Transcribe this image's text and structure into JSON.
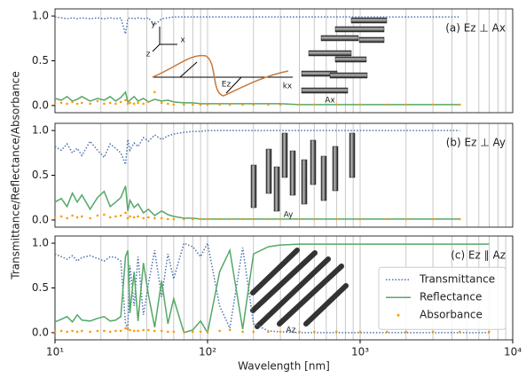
{
  "chart_data": [
    {
      "type": "line",
      "title": "(a) Ez ⊥ Ax",
      "x": [
        10,
        11,
        12,
        13,
        14,
        15,
        17,
        19,
        21,
        23,
        25,
        27,
        29,
        30,
        31,
        33,
        35,
        38,
        41,
        45,
        50,
        55,
        60,
        70,
        80,
        90,
        100,
        120,
        140,
        170,
        200,
        250,
        300,
        400,
        500,
        700,
        1000,
        1500,
        2000,
        3000,
        4500,
        7000
      ],
      "xlim": [
        10,
        10000
      ],
      "log_x": true,
      "xgrid": [
        20,
        30,
        40,
        50,
        60,
        70,
        80,
        90,
        100,
        200,
        300,
        400,
        500,
        600,
        700,
        800,
        900,
        1000,
        2000,
        3000,
        4000,
        5000,
        6000,
        7000,
        8000,
        9000
      ],
      "ylim": [
        -0.08,
        1.08
      ],
      "yticks": [
        {
          "value": 0,
          "label": "0.0"
        },
        {
          "value": 0.5,
          "label": "0.5"
        },
        {
          "value": 1,
          "label": "1.0"
        }
      ],
      "series": [
        {
          "style": "dotted",
          "color": "#4c72b0",
          "values": [
            0.99,
            0.98,
            0.97,
            0.98,
            0.97,
            0.98,
            0.97,
            0.98,
            0.97,
            0.98,
            0.97,
            0.98,
            0.8,
            0.97,
            0.98,
            0.97,
            0.98,
            0.97,
            0.98,
            0.9,
            0.97,
            0.98,
            0.99,
            0.99,
            0.99,
            0.99,
            0.99,
            0.99,
            0.99,
            0.99,
            0.99,
            0.99,
            0.99,
            0.99,
            0.99,
            0.99,
            0.99,
            0.99,
            0.99,
            0.99,
            0.99,
            null
          ]
        },
        {
          "style": "solid",
          "color": "#55a868",
          "values": [
            0.08,
            0.06,
            0.1,
            0.05,
            0.07,
            0.1,
            0.05,
            0.08,
            0.06,
            0.1,
            0.05,
            0.09,
            0.15,
            0.04,
            0.06,
            0.1,
            0.05,
            0.08,
            0.04,
            0.07,
            0.05,
            0.06,
            0.04,
            0.03,
            0.03,
            0.02,
            0.02,
            0.02,
            0.02,
            0.02,
            0.02,
            0.02,
            0.02,
            0.01,
            0.01,
            0.01,
            0.01,
            0.01,
            0.01,
            0.01,
            0.01,
            null
          ]
        },
        {
          "style": "points",
          "color": "#ff9900",
          "values": [
            0.02,
            0.03,
            0.02,
            0.04,
            0.02,
            0.03,
            0.02,
            0.05,
            0.02,
            0.03,
            0.02,
            0.04,
            0.06,
            0.02,
            0.03,
            0.02,
            0.03,
            0.02,
            0.04,
            0.15,
            0.03,
            0.02,
            0.01,
            0.01,
            0.01,
            0.01,
            0.01,
            0.01,
            0.01,
            0.01,
            0.01,
            0.01,
            0.01,
            0.01,
            0.01,
            0.01,
            0.01,
            0.01,
            0.01,
            0.01,
            0.01,
            null
          ]
        }
      ],
      "inset_labels": [
        "y",
        "x",
        "z",
        "Ez",
        "kx",
        "Ax"
      ]
    },
    {
      "type": "line",
      "title": "(b) Ez ⊥ Ay",
      "ylabel": "Transmittance/Reflectance/Absorbance",
      "x": [
        10,
        11,
        12,
        13,
        14,
        15,
        17,
        19,
        21,
        23,
        25,
        27,
        29,
        30,
        31,
        33,
        35,
        38,
        41,
        45,
        50,
        55,
        60,
        70,
        80,
        90,
        100,
        120,
        140,
        170,
        200,
        250,
        300,
        400,
        500,
        700,
        1000,
        1500,
        2000,
        3000,
        4500,
        7000
      ],
      "xlim": [
        10,
        10000
      ],
      "log_x": true,
      "xgrid": [
        20,
        30,
        40,
        50,
        60,
        70,
        80,
        90,
        100,
        200,
        300,
        400,
        500,
        600,
        700,
        800,
        900,
        1000,
        2000,
        3000,
        4000,
        5000,
        6000,
        7000,
        8000,
        9000
      ],
      "ylim": [
        -0.08,
        1.08
      ],
      "yticks": [
        {
          "value": 0,
          "label": "0.0"
        },
        {
          "value": 0.5,
          "label": "0.5"
        },
        {
          "value": 1,
          "label": "1.0"
        }
      ],
      "series": [
        {
          "style": "dotted",
          "color": "#4c72b0",
          "values": [
            0.82,
            0.78,
            0.85,
            0.75,
            0.8,
            0.72,
            0.88,
            0.78,
            0.7,
            0.85,
            0.8,
            0.75,
            0.62,
            0.9,
            0.78,
            0.86,
            0.82,
            0.92,
            0.88,
            0.95,
            0.9,
            0.94,
            0.96,
            0.98,
            0.99,
            0.99,
            1.0,
            1.0,
            1.0,
            1.0,
            1.0,
            1.0,
            1.0,
            1.0,
            1.0,
            1.0,
            1.0,
            1.0,
            1.0,
            1.0,
            1.0,
            null
          ]
        },
        {
          "style": "solid",
          "color": "#55a868",
          "values": [
            0.2,
            0.24,
            0.15,
            0.3,
            0.2,
            0.28,
            0.12,
            0.25,
            0.32,
            0.15,
            0.2,
            0.25,
            0.38,
            0.1,
            0.22,
            0.14,
            0.18,
            0.08,
            0.12,
            0.05,
            0.1,
            0.06,
            0.04,
            0.02,
            0.02,
            0.01,
            0.01,
            0.01,
            0.01,
            0.01,
            0.01,
            0.01,
            0.01,
            0.01,
            0.01,
            0.01,
            0.01,
            0.01,
            0.01,
            0.01,
            0.01,
            null
          ]
        },
        {
          "style": "points",
          "color": "#ff9900",
          "values": [
            0.03,
            0.04,
            0.02,
            0.05,
            0.03,
            0.04,
            0.02,
            0.05,
            0.06,
            0.03,
            0.04,
            0.05,
            0.08,
            0.02,
            0.04,
            0.03,
            0.04,
            0.02,
            0.03,
            0.02,
            0.02,
            0.01,
            0.01,
            0.01,
            0.01,
            0.01,
            0.01,
            0.01,
            0.01,
            0.01,
            0.01,
            0.01,
            0.01,
            0.01,
            0.01,
            0.01,
            0.01,
            0.01,
            0.01,
            0.01,
            0.01,
            null
          ]
        }
      ],
      "inset_labels": [
        "Ay"
      ]
    },
    {
      "type": "line",
      "title": "(c) Ez ∥ Az",
      "xlabel": "Wavelength [nm]",
      "legend": "center right",
      "x": [
        10,
        11,
        12,
        13,
        14,
        15,
        17,
        19,
        21,
        23,
        25,
        27,
        29,
        30,
        31,
        33,
        35,
        38,
        41,
        45,
        50,
        55,
        60,
        70,
        80,
        90,
        100,
        120,
        140,
        170,
        200,
        250,
        300,
        400,
        500,
        700,
        1000,
        1500,
        2000,
        3000,
        4500,
        7000
      ],
      "xlim": [
        10,
        10000
      ],
      "log_x": true,
      "xticks": [
        {
          "value": 10,
          "label": "10¹"
        },
        {
          "value": 100,
          "label": "10²"
        },
        {
          "value": 1000,
          "label": "10³"
        },
        {
          "value": 10000,
          "label": "10⁴"
        }
      ],
      "xgrid": [
        20,
        30,
        40,
        50,
        60,
        70,
        80,
        90,
        100,
        200,
        300,
        400,
        500,
        600,
        700,
        800,
        900,
        1000,
        2000,
        3000,
        4000,
        5000,
        6000,
        7000,
        8000,
        9000
      ],
      "ylim": [
        -0.08,
        1.08
      ],
      "yticks": [
        {
          "value": 0,
          "label": "0.0"
        },
        {
          "value": 0.5,
          "label": "0.5"
        },
        {
          "value": 1,
          "label": "1.0"
        }
      ],
      "series": [
        {
          "name": "Transmittance",
          "style": "dotted",
          "color": "#4c72b0",
          "values": [
            0.88,
            0.85,
            0.82,
            0.86,
            0.8,
            0.84,
            0.86,
            0.83,
            0.8,
            0.85,
            0.84,
            0.8,
            0.1,
            0.05,
            0.75,
            0.3,
            0.85,
            0.2,
            0.55,
            0.92,
            0.4,
            0.88,
            0.6,
            1.0,
            0.96,
            0.85,
            1.0,
            0.3,
            0.05,
            0.95,
            0.1,
            0.02,
            0.01,
            0.0,
            0.0,
            0.0,
            0.0,
            0.0,
            0.0,
            0.0,
            0.0,
            0.0
          ]
        },
        {
          "name": "Reflectance",
          "style": "solid",
          "color": "#55a868",
          "values": [
            0.12,
            0.15,
            0.18,
            0.12,
            0.2,
            0.14,
            0.13,
            0.16,
            0.18,
            0.13,
            0.14,
            0.18,
            0.85,
            0.92,
            0.22,
            0.68,
            0.13,
            0.78,
            0.42,
            0.06,
            0.58,
            0.1,
            0.38,
            0.0,
            0.03,
            0.13,
            0.0,
            0.68,
            0.92,
            0.04,
            0.88,
            0.96,
            0.98,
            0.99,
            0.99,
            0.99,
            0.99,
            0.99,
            0.99,
            0.99,
            0.99,
            0.99
          ]
        },
        {
          "name": "Absorbance",
          "style": "points",
          "color": "#ff9900",
          "values": [
            0.01,
            0.02,
            0.01,
            0.02,
            0.01,
            0.02,
            0.01,
            0.02,
            0.02,
            0.01,
            0.02,
            0.02,
            0.05,
            0.04,
            0.03,
            0.02,
            0.02,
            0.03,
            0.03,
            0.02,
            0.02,
            0.01,
            0.01,
            0.01,
            0.01,
            0.01,
            0.01,
            0.02,
            0.03,
            0.01,
            0.01,
            0.01,
            0.01,
            0.01,
            0.01,
            0.01,
            0.01,
            0.01,
            0.01,
            0.01,
            0.01,
            0.01
          ]
        }
      ],
      "inset_labels": [
        "Az"
      ]
    }
  ]
}
